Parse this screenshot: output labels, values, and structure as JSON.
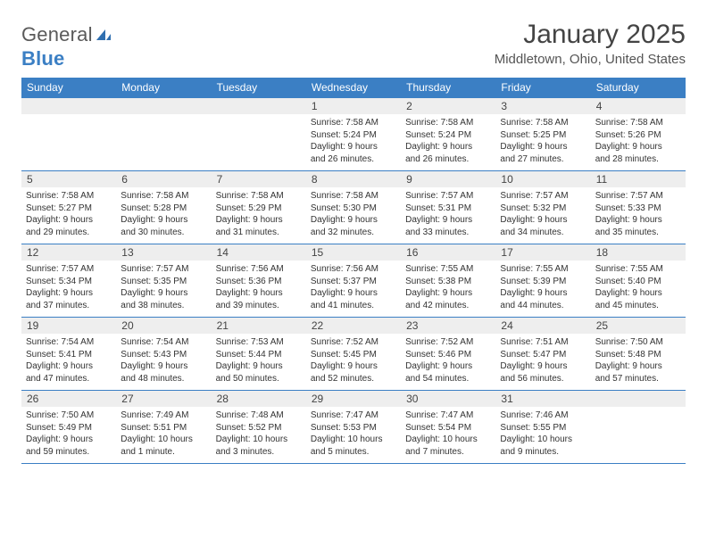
{
  "brand": {
    "word1": "General",
    "word2": "Blue"
  },
  "title": "January 2025",
  "location": "Middletown, Ohio, United States",
  "colors": {
    "header_bg": "#3b7fc4",
    "header_text": "#ffffff",
    "daynum_bg": "#eeeeee",
    "border": "#3b7fc4",
    "text": "#333333",
    "page_bg": "#ffffff",
    "logo_gray": "#5a5a5a",
    "logo_blue": "#3b7fc4"
  },
  "typography": {
    "title_fontsize": 30,
    "location_fontsize": 15,
    "dayheader_fontsize": 12,
    "daynum_fontsize": 12,
    "body_fontsize": 10
  },
  "dayNames": [
    "Sunday",
    "Monday",
    "Tuesday",
    "Wednesday",
    "Thursday",
    "Friday",
    "Saturday"
  ],
  "weeks": [
    {
      "nums": [
        "",
        "",
        "",
        "1",
        "2",
        "3",
        "4"
      ],
      "cells": [
        null,
        null,
        null,
        {
          "sunrise": "Sunrise: 7:58 AM",
          "sunset": "Sunset: 5:24 PM",
          "day1": "Daylight: 9 hours",
          "day2": "and 26 minutes."
        },
        {
          "sunrise": "Sunrise: 7:58 AM",
          "sunset": "Sunset: 5:24 PM",
          "day1": "Daylight: 9 hours",
          "day2": "and 26 minutes."
        },
        {
          "sunrise": "Sunrise: 7:58 AM",
          "sunset": "Sunset: 5:25 PM",
          "day1": "Daylight: 9 hours",
          "day2": "and 27 minutes."
        },
        {
          "sunrise": "Sunrise: 7:58 AM",
          "sunset": "Sunset: 5:26 PM",
          "day1": "Daylight: 9 hours",
          "day2": "and 28 minutes."
        }
      ]
    },
    {
      "nums": [
        "5",
        "6",
        "7",
        "8",
        "9",
        "10",
        "11"
      ],
      "cells": [
        {
          "sunrise": "Sunrise: 7:58 AM",
          "sunset": "Sunset: 5:27 PM",
          "day1": "Daylight: 9 hours",
          "day2": "and 29 minutes."
        },
        {
          "sunrise": "Sunrise: 7:58 AM",
          "sunset": "Sunset: 5:28 PM",
          "day1": "Daylight: 9 hours",
          "day2": "and 30 minutes."
        },
        {
          "sunrise": "Sunrise: 7:58 AM",
          "sunset": "Sunset: 5:29 PM",
          "day1": "Daylight: 9 hours",
          "day2": "and 31 minutes."
        },
        {
          "sunrise": "Sunrise: 7:58 AM",
          "sunset": "Sunset: 5:30 PM",
          "day1": "Daylight: 9 hours",
          "day2": "and 32 minutes."
        },
        {
          "sunrise": "Sunrise: 7:57 AM",
          "sunset": "Sunset: 5:31 PM",
          "day1": "Daylight: 9 hours",
          "day2": "and 33 minutes."
        },
        {
          "sunrise": "Sunrise: 7:57 AM",
          "sunset": "Sunset: 5:32 PM",
          "day1": "Daylight: 9 hours",
          "day2": "and 34 minutes."
        },
        {
          "sunrise": "Sunrise: 7:57 AM",
          "sunset": "Sunset: 5:33 PM",
          "day1": "Daylight: 9 hours",
          "day2": "and 35 minutes."
        }
      ]
    },
    {
      "nums": [
        "12",
        "13",
        "14",
        "15",
        "16",
        "17",
        "18"
      ],
      "cells": [
        {
          "sunrise": "Sunrise: 7:57 AM",
          "sunset": "Sunset: 5:34 PM",
          "day1": "Daylight: 9 hours",
          "day2": "and 37 minutes."
        },
        {
          "sunrise": "Sunrise: 7:57 AM",
          "sunset": "Sunset: 5:35 PM",
          "day1": "Daylight: 9 hours",
          "day2": "and 38 minutes."
        },
        {
          "sunrise": "Sunrise: 7:56 AM",
          "sunset": "Sunset: 5:36 PM",
          "day1": "Daylight: 9 hours",
          "day2": "and 39 minutes."
        },
        {
          "sunrise": "Sunrise: 7:56 AM",
          "sunset": "Sunset: 5:37 PM",
          "day1": "Daylight: 9 hours",
          "day2": "and 41 minutes."
        },
        {
          "sunrise": "Sunrise: 7:55 AM",
          "sunset": "Sunset: 5:38 PM",
          "day1": "Daylight: 9 hours",
          "day2": "and 42 minutes."
        },
        {
          "sunrise": "Sunrise: 7:55 AM",
          "sunset": "Sunset: 5:39 PM",
          "day1": "Daylight: 9 hours",
          "day2": "and 44 minutes."
        },
        {
          "sunrise": "Sunrise: 7:55 AM",
          "sunset": "Sunset: 5:40 PM",
          "day1": "Daylight: 9 hours",
          "day2": "and 45 minutes."
        }
      ]
    },
    {
      "nums": [
        "19",
        "20",
        "21",
        "22",
        "23",
        "24",
        "25"
      ],
      "cells": [
        {
          "sunrise": "Sunrise: 7:54 AM",
          "sunset": "Sunset: 5:41 PM",
          "day1": "Daylight: 9 hours",
          "day2": "and 47 minutes."
        },
        {
          "sunrise": "Sunrise: 7:54 AM",
          "sunset": "Sunset: 5:43 PM",
          "day1": "Daylight: 9 hours",
          "day2": "and 48 minutes."
        },
        {
          "sunrise": "Sunrise: 7:53 AM",
          "sunset": "Sunset: 5:44 PM",
          "day1": "Daylight: 9 hours",
          "day2": "and 50 minutes."
        },
        {
          "sunrise": "Sunrise: 7:52 AM",
          "sunset": "Sunset: 5:45 PM",
          "day1": "Daylight: 9 hours",
          "day2": "and 52 minutes."
        },
        {
          "sunrise": "Sunrise: 7:52 AM",
          "sunset": "Sunset: 5:46 PM",
          "day1": "Daylight: 9 hours",
          "day2": "and 54 minutes."
        },
        {
          "sunrise": "Sunrise: 7:51 AM",
          "sunset": "Sunset: 5:47 PM",
          "day1": "Daylight: 9 hours",
          "day2": "and 56 minutes."
        },
        {
          "sunrise": "Sunrise: 7:50 AM",
          "sunset": "Sunset: 5:48 PM",
          "day1": "Daylight: 9 hours",
          "day2": "and 57 minutes."
        }
      ]
    },
    {
      "nums": [
        "26",
        "27",
        "28",
        "29",
        "30",
        "31",
        ""
      ],
      "cells": [
        {
          "sunrise": "Sunrise: 7:50 AM",
          "sunset": "Sunset: 5:49 PM",
          "day1": "Daylight: 9 hours",
          "day2": "and 59 minutes."
        },
        {
          "sunrise": "Sunrise: 7:49 AM",
          "sunset": "Sunset: 5:51 PM",
          "day1": "Daylight: 10 hours",
          "day2": "and 1 minute."
        },
        {
          "sunrise": "Sunrise: 7:48 AM",
          "sunset": "Sunset: 5:52 PM",
          "day1": "Daylight: 10 hours",
          "day2": "and 3 minutes."
        },
        {
          "sunrise": "Sunrise: 7:47 AM",
          "sunset": "Sunset: 5:53 PM",
          "day1": "Daylight: 10 hours",
          "day2": "and 5 minutes."
        },
        {
          "sunrise": "Sunrise: 7:47 AM",
          "sunset": "Sunset: 5:54 PM",
          "day1": "Daylight: 10 hours",
          "day2": "and 7 minutes."
        },
        {
          "sunrise": "Sunrise: 7:46 AM",
          "sunset": "Sunset: 5:55 PM",
          "day1": "Daylight: 10 hours",
          "day2": "and 9 minutes."
        },
        null
      ]
    }
  ]
}
